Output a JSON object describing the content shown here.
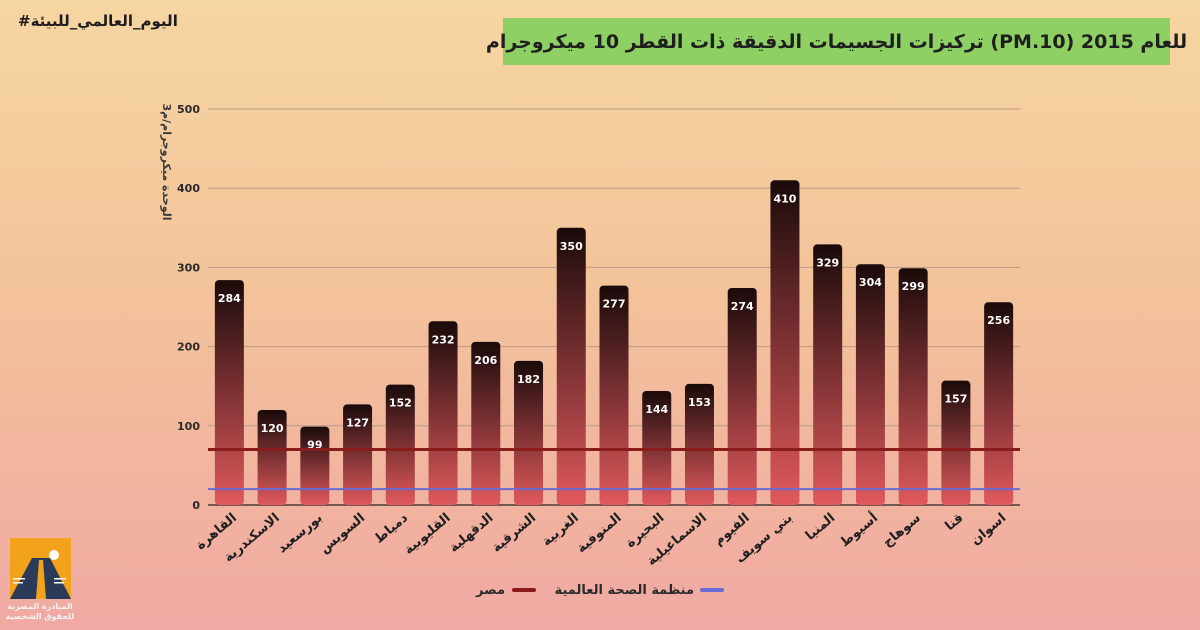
{
  "hashtag": "#اليوم_العالمي_للبيئة",
  "logo": {
    "name_line1": "المبادرة المصرية",
    "name_line2": "للحقوق الشخصية",
    "colors": {
      "primary": "#f3a21c",
      "secondary": "#2c3a5a"
    }
  },
  "chart_data": {
    "type": "bar",
    "title": "تركيزات الجسيمات الدقيقة  ذات القطر 10 ميكروجرام (PM.10) للعام 2015",
    "ylabel": "الوحدة ميكروجرام/م3",
    "xlabel": "",
    "ylim": [
      0,
      500
    ],
    "yticks": [
      0,
      100,
      200,
      300,
      400,
      500
    ],
    "grid": true,
    "categories": [
      "القاهرة",
      "الاسكندرية",
      "بورسعيد",
      "السويس",
      "دمياط",
      "القليوبية",
      "الدقهلية",
      "الشرقية",
      "الغربية",
      "المنوفية",
      "البحيرة",
      "الاسماعيلية",
      "الفيوم",
      "بني سويف",
      "المنيا",
      "أسيوط",
      "سوهاج",
      "قنا",
      "اسوان"
    ],
    "values": [
      284,
      120,
      99,
      127,
      152,
      232,
      206,
      182,
      350,
      277,
      144,
      153,
      274,
      410,
      329,
      304,
      299,
      157,
      256
    ],
    "reference_lines": [
      {
        "name": "مصر",
        "value": 70,
        "color": "#8b1c1c"
      },
      {
        "name": "منظمة الصحة العالمية",
        "value": 20,
        "color": "#6a6ad6"
      }
    ],
    "legend_position": "bottom",
    "colors": {
      "bar_top": "#1a0a0a",
      "bar_bottom": "#e0595c",
      "label": "#ffffff",
      "grid": "#b89a86",
      "axis": "#4a3a3a"
    }
  }
}
